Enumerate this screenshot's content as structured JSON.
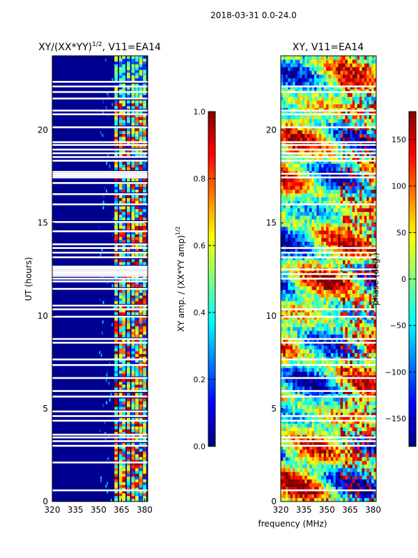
{
  "figure": {
    "suptitle": "2018-03-31 0.0-24.0",
    "shared_xlabel": "frequency (MHz)"
  },
  "colors": {
    "jet": [
      "#00007f",
      "#0000ff",
      "#007fff",
      "#00ffff",
      "#7fff7f",
      "#ffff00",
      "#ff7f00",
      "#ff0000",
      "#7f0000"
    ],
    "gap": "#ffffff",
    "base_low": "#000090"
  },
  "chart_data": [
    {
      "type": "heatmap",
      "title_main": "XY/(XX*YY)",
      "title_sup": "1/2",
      "title_rest": ", V11=EA14",
      "xlabel": "",
      "ylabel": "UT (hours)",
      "xlim": [
        320,
        382
      ],
      "ylim": [
        0,
        24
      ],
      "xticks": [
        320,
        335,
        350,
        365,
        380
      ],
      "yticks": [
        0,
        5,
        10,
        15,
        20
      ],
      "colorbar": {
        "label_main": "XY amp. / (XX*YY amp)",
        "label_sup": "1/2",
        "range": [
          0.0,
          1.0
        ],
        "ticks": [
          "0.0",
          "0.2",
          "0.4",
          "0.6",
          "0.8",
          "1.0"
        ]
      },
      "bright_columns_mhz": [
        361.5,
        364.5,
        366.5,
        369.5,
        372.5,
        375.0,
        377.5,
        380.0
      ],
      "flagged_ut_hours": [
        0.6,
        2.1,
        3.0,
        3.25,
        3.45,
        3.6,
        4.35,
        4.6,
        4.85,
        5.65,
        5.95,
        6.65,
        7.35,
        7.65,
        8.55,
        8.75,
        9.95,
        10.35,
        10.55,
        11.45,
        11.85,
        12.0,
        12.15,
        12.25,
        12.35,
        12.45,
        12.55,
        12.65,
        13.15,
        13.4,
        13.65,
        13.85,
        14.55,
        15.05,
        16.0,
        16.55,
        17.15,
        17.45,
        17.55,
        17.65,
        17.75,
        18.35,
        18.55,
        18.75,
        18.95,
        19.2,
        19.35,
        20.15,
        20.85,
        21.05,
        21.7,
        22.05,
        22.35,
        22.6
      ]
    },
    {
      "type": "heatmap",
      "title": "XY, V11=EA14",
      "xlabel": "frequency (MHz)",
      "ylabel": "",
      "xlim": [
        320,
        382
      ],
      "ylim": [
        0,
        24
      ],
      "xticks": [
        320,
        335,
        350,
        365,
        380
      ],
      "yticks": [
        0,
        5,
        10,
        15,
        20
      ],
      "colorbar": {
        "label": "phase (deg.)",
        "range": [
          -180,
          180
        ],
        "ticks": [
          "−150",
          "−100",
          "−50",
          "0",
          "50",
          "100",
          "150"
        ]
      },
      "flagged_ut_hours": [
        0.6,
        3.0,
        3.25,
        3.45,
        4.35,
        4.6,
        5.65,
        5.95,
        6.65,
        7.35,
        7.65,
        8.55,
        8.75,
        9.95,
        10.35,
        12.0,
        12.25,
        12.5,
        13.15,
        13.4,
        13.65,
        16.0,
        17.45,
        17.65,
        18.35,
        18.55,
        18.75,
        18.95,
        19.2,
        19.35,
        20.15,
        20.85,
        21.05,
        22.05,
        22.35
      ]
    }
  ]
}
